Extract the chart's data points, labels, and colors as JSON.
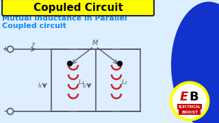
{
  "bg_color": "#ddeeff",
  "title_text": "Copuled Circuit",
  "title_bg": "#ffff00",
  "title_color": "#000000",
  "subtitle_line1": "Mutual Inductance in Parallel",
  "subtitle_line2": "Coupled circuit",
  "subtitle_color": "#1188ff",
  "circuit_color": "#555566",
  "inductor_color": "#cc2222",
  "label_It": "Iᵀ",
  "label_I1": "I₁",
  "label_I2": "I₂",
  "label_L1": "L₁",
  "label_L2": "L₂",
  "label_M": "M",
  "logo_circle_color": "#ffff00",
  "logo_blue_bg": "#1133cc",
  "logo_E_color": "#cc0000",
  "logo_B_color": "#000000",
  "logo_red_box": "#cc0000"
}
